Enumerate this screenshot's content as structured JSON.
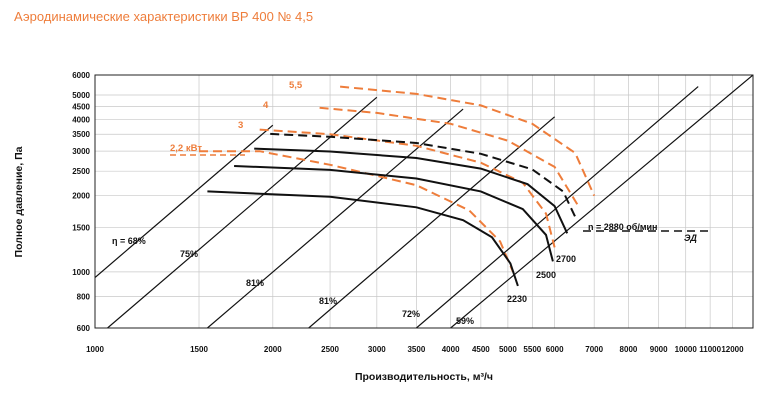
{
  "chart_data": {
    "type": "line",
    "title": "Аэродинамические характеристики ВР 400 № 4,5",
    "xlabel": "Производительность, м³/ч",
    "ylabel": "Полное давление, Па",
    "x_scale": "log",
    "y_scale": "log",
    "xlim": [
      1000,
      13000
    ],
    "ylim": [
      600,
      6000
    ],
    "x_ticks": [
      1000,
      1500,
      2000,
      2500,
      3000,
      3500,
      4000,
      4500,
      5000,
      5500,
      6000,
      7000,
      8000,
      9000,
      10000,
      11000,
      12000
    ],
    "x_tick_labels": [
      "1000",
      "1500",
      "2000",
      "2500",
      "3000",
      "3500",
      "4000",
      "4500",
      "5000",
      "5500",
      "6000",
      "7000",
      "8000",
      "9000",
      "10000",
      "11000",
      "12000"
    ],
    "y_ticks": [
      600,
      800,
      1000,
      1500,
      2000,
      2500,
      3000,
      3500,
      4000,
      4500,
      5000,
      6000
    ],
    "y_tick_labels": [
      "600",
      "800",
      "1000",
      "1500",
      "2000",
      "2500",
      "3000",
      "3500",
      "4000",
      "4500",
      "5000",
      "6000"
    ],
    "grid": true,
    "colors": {
      "speed": "#111111",
      "power": "#ee7d3b",
      "efficiency": "#111111"
    },
    "speed_curves": [
      {
        "name": "2230",
        "x": [
          1550,
          2500,
          3500,
          4200,
          4700,
          5050,
          5200
        ],
        "y": [
          2080,
          1980,
          1800,
          1600,
          1370,
          1080,
          880
        ]
      },
      {
        "name": "2500",
        "x": [
          1720,
          2500,
          3500,
          4500,
          5300,
          5800,
          5960
        ],
        "y": [
          2620,
          2530,
          2340,
          2080,
          1770,
          1400,
          1100
        ]
      },
      {
        "name": "2700",
        "x": [
          1860,
          2500,
          3500,
          4500,
          5400,
          6000,
          6300
        ],
        "y": [
          3070,
          2990,
          2820,
          2560,
          2220,
          1820,
          1420
        ]
      },
      {
        "name": "n = 2880 об/мин",
        "x": [
          1980,
          2500,
          3500,
          4500,
          5500,
          6200,
          6500
        ],
        "y": [
          3510,
          3420,
          3230,
          2930,
          2540,
          2080,
          1650
        ]
      }
    ],
    "power_curves": [
      {
        "name": "2,2 кВт",
        "x": [
          1500,
          1900,
          2500,
          3500,
          4300,
          4850,
          5100
        ],
        "y": [
          3000,
          3000,
          2650,
          2200,
          1750,
          1320,
          1000
        ]
      },
      {
        "name": "3",
        "x": [
          1900,
          2500,
          3500,
          4500,
          5300,
          5800,
          6000
        ],
        "y": [
          3650,
          3500,
          3150,
          2700,
          2250,
          1700,
          1250
        ]
      },
      {
        "name": "4",
        "x": [
          2400,
          3000,
          4000,
          5000,
          6000,
          6600
        ],
        "y": [
          4450,
          4250,
          3850,
          3300,
          2600,
          1800
        ]
      },
      {
        "name": "5,5",
        "x": [
          2600,
          3500,
          4500,
          5500,
          6500,
          7000
        ],
        "y": [
          5400,
          5050,
          4550,
          3850,
          2950,
          2000
        ]
      }
    ],
    "efficiency_lines": [
      {
        "name": "η = 68%",
        "x": [
          1000,
          2000
        ],
        "y": [
          950,
          3800
        ]
      },
      {
        "name": "75%",
        "x": [
          1050,
          3000
        ],
        "y": [
          600,
          4900
        ]
      },
      {
        "name": "81%",
        "x": [
          1550,
          4200
        ],
        "y": [
          600,
          4400
        ]
      },
      {
        "name": "81%",
        "x": [
          2300,
          6000
        ],
        "y": [
          600,
          4100
        ]
      },
      {
        "name": "72%",
        "x": [
          3500,
          10500
        ],
        "y": [
          600,
          5400
        ]
      },
      {
        "name": "59%",
        "x": [
          4000,
          13000
        ],
        "y": [
          600,
          6000
        ]
      }
    ],
    "ed_line": {
      "name": "ЭД",
      "x": [
        6700,
        11000
      ],
      "y": [
        1450,
        1450
      ]
    },
    "annotations": {
      "power": [
        "2,2 кВт",
        "3",
        "4",
        "5,5"
      ],
      "speed": [
        "n = 2880 об/мин",
        "2700",
        "2500",
        "2230"
      ],
      "efficiency": [
        "η = 68%",
        "75%",
        "81%",
        "81%",
        "72%",
        "59%"
      ],
      "ed": "ЭД"
    }
  }
}
